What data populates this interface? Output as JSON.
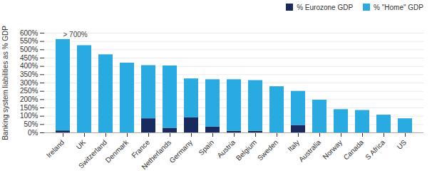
{
  "chart_data": {
    "type": "bar",
    "stacked": true,
    "categories": [
      "Ireland",
      "UK",
      "Switzerland",
      "Denmark",
      "France",
      "Netherlands",
      "Germany",
      "Spain",
      "Austria",
      "Belgium",
      "Sweden",
      "Italy",
      "Australia",
      "Norway",
      "Canada",
      "S Africa",
      "US"
    ],
    "series": [
      {
        "name": "% Eurozone GDP",
        "color": "#1B2A5E",
        "values": [
          12,
          0,
          0,
          0,
          85,
          28,
          90,
          35,
          10,
          10,
          0,
          45,
          0,
          0,
          0,
          0,
          0
        ]
      },
      {
        "name": "% \"Home\" GDP",
        "color": "#29ABE2",
        "values": [
          550,
          525,
          470,
          420,
          320,
          375,
          235,
          285,
          310,
          305,
          278,
          205,
          197,
          140,
          135,
          107,
          85
        ]
      }
    ],
    "y_label": "Banking system liabilities as % GDP",
    "annotation": "> 700%",
    "ylim": [
      0,
      600
    ],
    "yticks": [
      {
        "value": 0,
        "label": "0%"
      },
      {
        "value": 50,
        "label": "50%"
      },
      {
        "value": 100,
        "label": "100%"
      },
      {
        "value": 150,
        "label": "150%"
      },
      {
        "value": 200,
        "label": "200%"
      },
      {
        "value": 250,
        "label": "250%"
      },
      {
        "value": 300,
        "label": "300%"
      },
      {
        "value": 350,
        "label": "350%"
      },
      {
        "value": 400,
        "label": "400%"
      },
      {
        "value": 450,
        "label": "450%"
      },
      {
        "value": 500,
        "label": "500%"
      },
      {
        "value": 550,
        "label": "550%"
      },
      {
        "value": 600,
        "label": "600%"
      }
    ],
    "grid": true,
    "legend": "upper right"
  }
}
